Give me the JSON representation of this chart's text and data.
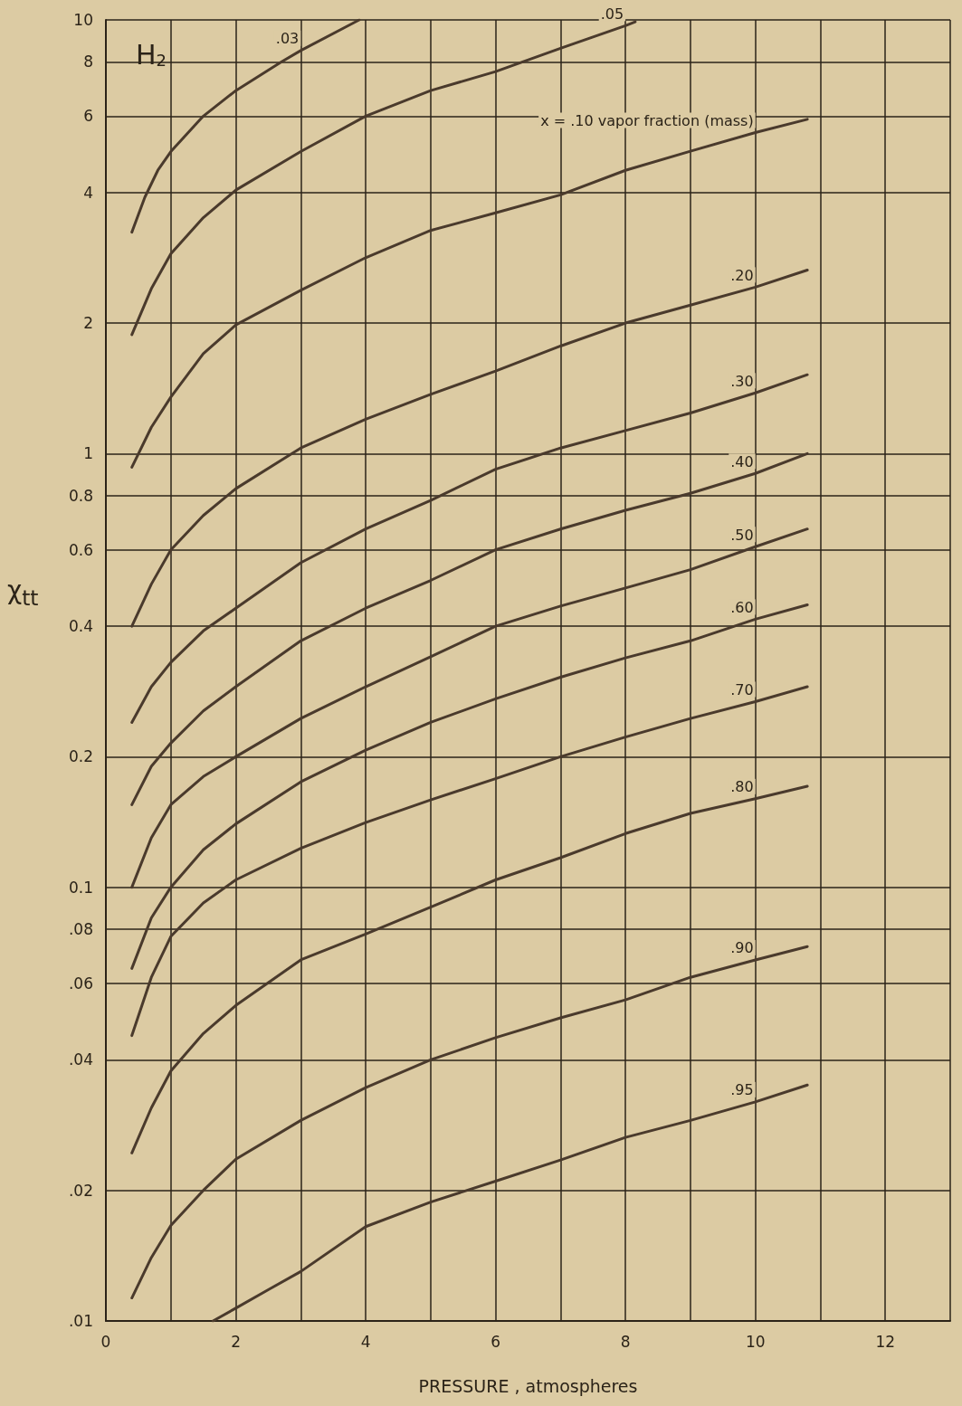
{
  "chart_data": {
    "type": "line",
    "xlabel": "PRESSURE , atmospheres",
    "ylabel": "χ$_{tt}$",
    "annotations": [
      "H$_{2}$"
    ],
    "log": "y",
    "grid": true,
    "marker": "none",
    "line_style": "solid",
    "xlim": [
      0,
      13
    ],
    "xticks": [
      0,
      {
        "value": 1,
        "label": null
      },
      2,
      {
        "value": 3,
        "label": null
      },
      4,
      {
        "value": 5,
        "label": null
      },
      6,
      {
        "value": 7,
        "label": null
      },
      8,
      {
        "value": 9,
        "label": null
      },
      10,
      {
        "value": 11,
        "label": null
      },
      12,
      {
        "value": 13,
        "label": null
      }
    ],
    "ylim": [
      0.01,
      10
    ],
    "yticks": [
      {
        "value": 0.01,
        "label": ".01"
      },
      {
        "value": 0.02,
        "label": ".02"
      },
      {
        "value": 0.04,
        "label": ".04"
      },
      {
        "value": 0.06,
        "label": ".06"
      },
      {
        "value": 0.08,
        "label": ".08"
      },
      0.1,
      0.2,
      0.4,
      0.6,
      0.8,
      1,
      2,
      4,
      6,
      8,
      10
    ],
    "series": [
      {
        "name": ".03",
        "color": "#4a3a2c",
        "x": [
          0.4,
          0.6,
          0.8,
          1,
          1.5,
          2,
          2.7,
          3,
          3.9
        ],
        "values": [
          3.24,
          3.9,
          4.5,
          4.97,
          6.0,
          6.87,
          8.0,
          8.5,
          10
        ]
      },
      {
        "name": ".05",
        "color": "#4a3a2c",
        "x": [
          0.4,
          0.7,
          1,
          1.5,
          2,
          3,
          4,
          5,
          6,
          7,
          8,
          8.15
        ],
        "values": [
          1.88,
          2.4,
          2.89,
          3.5,
          4.05,
          4.97,
          6.0,
          6.87,
          7.6,
          8.6,
          9.7,
          9.9
        ]
      },
      {
        "name": "x = .10 vapor fraction (mass)",
        "color": "#4a3a2c",
        "x": [
          0.4,
          0.7,
          1,
          1.5,
          2,
          3,
          4,
          5,
          6,
          7,
          8,
          9,
          10,
          10.8
        ],
        "values": [
          0.93,
          1.15,
          1.35,
          1.7,
          1.98,
          2.38,
          2.83,
          3.27,
          3.59,
          3.95,
          4.5,
          4.98,
          5.5,
          5.9
        ]
      },
      {
        "name": ".20",
        "color": "#4a3a2c",
        "x": [
          0.4,
          0.7,
          1,
          1.5,
          2,
          3,
          4,
          5,
          6,
          7,
          8,
          9,
          10,
          10.8
        ],
        "values": [
          0.4,
          0.5,
          0.6,
          0.72,
          0.83,
          1.03,
          1.2,
          1.37,
          1.55,
          1.77,
          2.0,
          2.2,
          2.42,
          2.65
        ]
      },
      {
        "name": ".30",
        "color": "#4a3a2c",
        "x": [
          0.4,
          0.7,
          1,
          1.5,
          2,
          3,
          4,
          5,
          6,
          7,
          8,
          9,
          10,
          10.8
        ],
        "values": [
          0.24,
          0.29,
          0.33,
          0.39,
          0.44,
          0.56,
          0.67,
          0.78,
          0.92,
          1.03,
          1.13,
          1.24,
          1.38,
          1.52
        ]
      },
      {
        "name": ".40",
        "color": "#4a3a2c",
        "x": [
          0.4,
          0.7,
          1,
          1.5,
          2,
          3,
          4,
          5,
          6,
          7,
          8,
          9,
          10,
          10.8
        ],
        "values": [
          0.155,
          0.19,
          0.215,
          0.255,
          0.29,
          0.37,
          0.44,
          0.51,
          0.6,
          0.67,
          0.74,
          0.81,
          0.9,
          1.0
        ]
      },
      {
        "name": ".50",
        "color": "#4a3a2c",
        "x": [
          0.4,
          0.7,
          1,
          1.5,
          2,
          3,
          4,
          5,
          6,
          7,
          8,
          9,
          10,
          10.8
        ],
        "values": [
          0.1,
          0.13,
          0.155,
          0.18,
          0.2,
          0.245,
          0.29,
          0.34,
          0.4,
          0.445,
          0.49,
          0.54,
          0.61,
          0.67
        ]
      },
      {
        "name": ".60",
        "color": "#4a3a2c",
        "x": [
          0.4,
          0.7,
          1,
          1.5,
          2,
          3,
          4,
          5,
          6,
          7,
          8,
          9,
          10,
          10.8
        ],
        "values": [
          0.065,
          0.085,
          0.1,
          0.122,
          0.14,
          0.175,
          0.207,
          0.24,
          0.272,
          0.305,
          0.338,
          0.37,
          0.415,
          0.448
        ]
      },
      {
        "name": ".70",
        "color": "#4a3a2c",
        "x": [
          0.4,
          0.7,
          1,
          1.5,
          2,
          3,
          4,
          5,
          6,
          7,
          8,
          9,
          10,
          10.8
        ],
        "values": [
          0.0455,
          0.062,
          0.077,
          0.092,
          0.104,
          0.123,
          0.141,
          0.159,
          0.178,
          0.2,
          0.222,
          0.245,
          0.268,
          0.29
        ]
      },
      {
        "name": ".80",
        "color": "#4a3a2c",
        "x": [
          0.4,
          0.7,
          1,
          1.5,
          2,
          3,
          4,
          5,
          6,
          7,
          8,
          9,
          10,
          10.8
        ],
        "values": [
          0.0244,
          0.031,
          0.0377,
          0.046,
          0.0534,
          0.068,
          0.078,
          0.09,
          0.104,
          0.117,
          0.133,
          0.148,
          0.16,
          0.171
        ]
      },
      {
        "name": ".90",
        "color": "#4a3a2c",
        "x": [
          0.4,
          0.7,
          1,
          1.5,
          2,
          3,
          4,
          5,
          6,
          7,
          8,
          9,
          10,
          10.8
        ],
        "values": [
          0.0113,
          0.014,
          0.0166,
          0.02,
          0.0236,
          0.029,
          0.0345,
          0.04,
          0.045,
          0.05,
          0.055,
          0.062,
          0.068,
          0.073
        ]
      },
      {
        "name": ".95",
        "color": "#4a3a2c",
        "x": [
          1.65,
          2,
          2.5,
          3,
          4,
          5,
          6,
          7,
          8,
          9,
          10,
          10.8
        ],
        "values": [
          0.01,
          0.0107,
          0.0118,
          0.013,
          0.0165,
          0.0188,
          0.021,
          0.0235,
          0.0265,
          0.029,
          0.032,
          0.035
        ]
      }
    ]
  }
}
